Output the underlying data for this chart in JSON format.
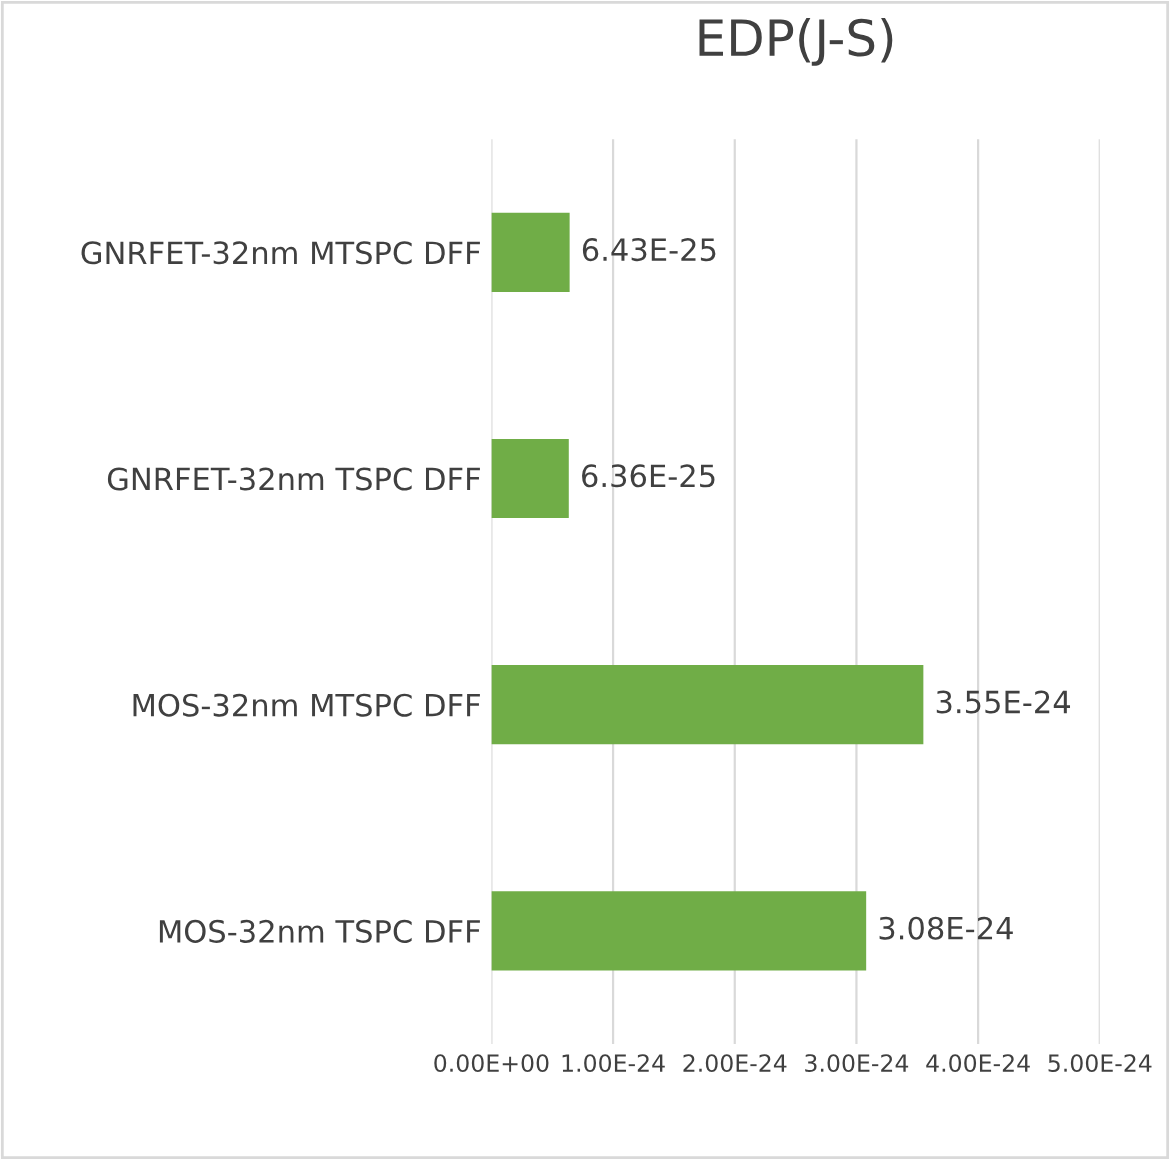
{
  "chart_data": {
    "type": "bar",
    "orientation": "horizontal",
    "title": "EDP(J-S)",
    "categories": [
      "GNRFET-32nm MTSPC DFF",
      "GNRFET-32nm TSPC DFF",
      "MOS-32nm MTSPC DFF",
      "MOS-32nm TSPC DFF"
    ],
    "values": [
      6.43e-25,
      6.36e-25,
      3.55e-24,
      3.08e-24
    ],
    "value_labels": [
      "6.43E-25",
      "6.36E-25",
      "3.55E-24",
      "3.08E-24"
    ],
    "color": "#70ad47",
    "xlim": [
      0,
      5e-24
    ],
    "xticks": [
      {
        "value": 0,
        "label": "0.00E+00"
      },
      {
        "value": 1e-24,
        "label": "1.00E-24"
      },
      {
        "value": 2e-24,
        "label": "2.00E-24"
      },
      {
        "value": 3e-24,
        "label": "3.00E-24"
      },
      {
        "value": 4e-24,
        "label": "4.00E-24"
      },
      {
        "value": 5e-24,
        "label": "5.00E-24"
      }
    ],
    "grid": "x",
    "legend": false
  }
}
